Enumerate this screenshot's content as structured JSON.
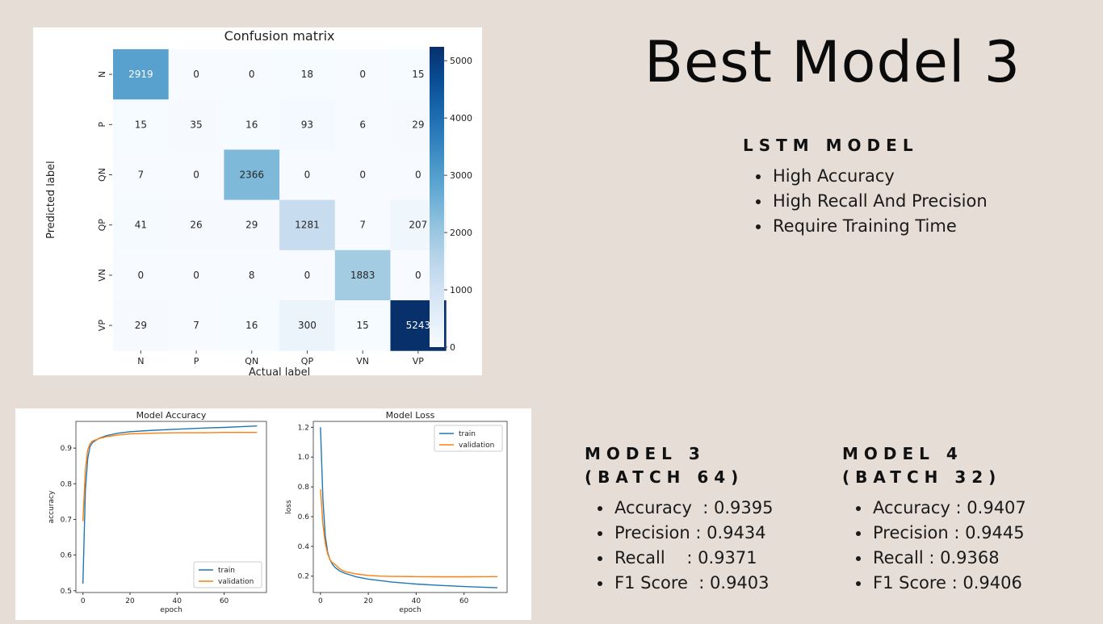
{
  "title": "Best Model 3",
  "lstm": {
    "heading": "LSTM MODEL",
    "bullets": [
      "High Accuracy",
      "High Recall And Precision",
      "Require Training Time"
    ]
  },
  "model3": {
    "heading_line1": "MODEL 3",
    "heading_line2": "(BATCH 64)",
    "metrics": [
      "Accuracy  : 0.9395",
      "Precision : 0.9434",
      "Recall    : 0.9371",
      "F1 Score  : 0.9403"
    ]
  },
  "model4": {
    "heading_line1": "MODEL 4",
    "heading_line2": "(BATCH 32)",
    "metrics": [
      "Accuracy : 0.9407",
      "Precision : 0.9445",
      "Recall : 0.9368",
      "F1 Score : 0.9406"
    ]
  },
  "colors": {
    "background": "#e6ddd7",
    "train": "#1f77b4",
    "validation": "#ff7f0e",
    "heatmap_low": "#f7fbff",
    "heatmap_high": "#08306b"
  },
  "chart_data": [
    {
      "type": "heatmap",
      "title": "Confusion matrix",
      "xlabel": "Actual label",
      "ylabel": "Predicted label",
      "x_categories": [
        "N",
        "P",
        "QN",
        "QP",
        "VN",
        "VP"
      ],
      "y_categories": [
        "N",
        "P",
        "QN",
        "QP",
        "VN",
        "VP"
      ],
      "values": [
        [
          2919,
          0,
          0,
          18,
          0,
          15
        ],
        [
          15,
          35,
          16,
          93,
          6,
          29
        ],
        [
          7,
          0,
          2366,
          0,
          0,
          0
        ],
        [
          41,
          26,
          29,
          1281,
          7,
          207
        ],
        [
          0,
          0,
          8,
          0,
          1883,
          0
        ],
        [
          29,
          7,
          16,
          300,
          15,
          5243
        ]
      ],
      "colorbar_ticks": [
        0,
        1000,
        2000,
        3000,
        4000,
        5000
      ],
      "colorbar_range": [
        0,
        5243
      ],
      "colormap": "Blues"
    },
    {
      "type": "line",
      "title": "Model Accuracy",
      "xlabel": "epoch",
      "ylabel": "accuracy",
      "xlim": [
        -3,
        78
      ],
      "ylim": [
        0.495,
        0.975
      ],
      "xticks": [
        0,
        20,
        40,
        60
      ],
      "yticks": [
        0.5,
        0.6,
        0.7,
        0.8,
        0.9
      ],
      "legend": "bottom-right",
      "series": [
        {
          "name": "train",
          "x": [
            0,
            1,
            2,
            3,
            4,
            5,
            7,
            10,
            15,
            20,
            30,
            40,
            50,
            60,
            70,
            74
          ],
          "y": [
            0.52,
            0.78,
            0.87,
            0.905,
            0.915,
            0.92,
            0.928,
            0.935,
            0.942,
            0.946,
            0.95,
            0.953,
            0.956,
            0.958,
            0.961,
            0.962
          ]
        },
        {
          "name": "validation",
          "x": [
            0,
            1,
            2,
            3,
            4,
            5,
            7,
            10,
            15,
            20,
            30,
            40,
            50,
            60,
            70,
            74
          ],
          "y": [
            0.695,
            0.84,
            0.895,
            0.912,
            0.92,
            0.922,
            0.927,
            0.932,
            0.937,
            0.94,
            0.942,
            0.943,
            0.943,
            0.944,
            0.944,
            0.944
          ]
        }
      ]
    },
    {
      "type": "line",
      "title": "Model Loss",
      "xlabel": "epoch",
      "ylabel": "loss",
      "xlim": [
        -3,
        78
      ],
      "ylim": [
        0.09,
        1.24
      ],
      "xticks": [
        0,
        20,
        40,
        60
      ],
      "yticks": [
        0.2,
        0.4,
        0.6,
        0.8,
        1.0,
        1.2
      ],
      "legend": "top-right",
      "series": [
        {
          "name": "train",
          "x": [
            0,
            1,
            2,
            3,
            4,
            5,
            6,
            8,
            10,
            15,
            20,
            30,
            40,
            50,
            60,
            70,
            74
          ],
          "y": [
            1.2,
            0.72,
            0.47,
            0.36,
            0.31,
            0.28,
            0.26,
            0.235,
            0.22,
            0.195,
            0.18,
            0.16,
            0.147,
            0.138,
            0.13,
            0.124,
            0.122
          ]
        },
        {
          "name": "validation",
          "x": [
            0,
            1,
            2,
            3,
            4,
            5,
            6,
            8,
            10,
            15,
            20,
            25,
            30,
            40,
            50,
            60,
            70,
            74
          ],
          "y": [
            0.785,
            0.55,
            0.42,
            0.35,
            0.31,
            0.29,
            0.28,
            0.25,
            0.232,
            0.215,
            0.205,
            0.2,
            0.198,
            0.197,
            0.196,
            0.196,
            0.197,
            0.197
          ]
        }
      ]
    }
  ]
}
